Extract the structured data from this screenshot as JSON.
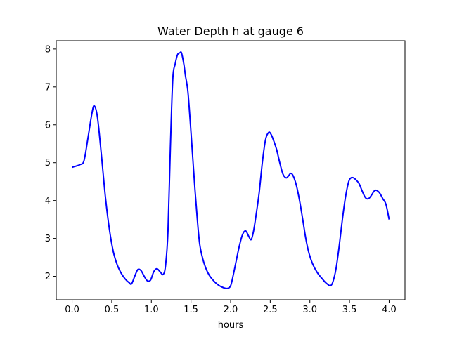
{
  "chart_data": {
    "type": "line",
    "title": "Water Depth h at gauge 6",
    "xlabel": "hours",
    "ylabel": "",
    "xlim": [
      -0.2,
      4.2
    ],
    "ylim": [
      1.38,
      8.22
    ],
    "xticks": [
      0.0,
      0.5,
      1.0,
      1.5,
      2.0,
      2.5,
      3.0,
      3.5,
      4.0
    ],
    "xtick_labels": [
      "0.0",
      "0.5",
      "1.0",
      "1.5",
      "2.0",
      "2.5",
      "3.0",
      "3.5",
      "4.0"
    ],
    "yticks": [
      2,
      3,
      4,
      5,
      6,
      7,
      8
    ],
    "ytick_labels": [
      "2",
      "3",
      "4",
      "5",
      "6",
      "7",
      "8"
    ],
    "grid": false,
    "series": [
      {
        "color": "#0000ff",
        "x": [
          0.0,
          0.05,
          0.1,
          0.15,
          0.2,
          0.25,
          0.28,
          0.32,
          0.37,
          0.42,
          0.47,
          0.52,
          0.57,
          0.62,
          0.67,
          0.72,
          0.75,
          0.79,
          0.83,
          0.87,
          0.91,
          0.95,
          0.99,
          1.03,
          1.07,
          1.11,
          1.15,
          1.18,
          1.21,
          1.24,
          1.27,
          1.3,
          1.33,
          1.36,
          1.38,
          1.41,
          1.43,
          1.46,
          1.49,
          1.52,
          1.55,
          1.58,
          1.61,
          1.65,
          1.69,
          1.73,
          1.77,
          1.81,
          1.86,
          1.91,
          1.96,
          2.0,
          2.03,
          2.07,
          2.11,
          2.15,
          2.19,
          2.23,
          2.26,
          2.29,
          2.32,
          2.36,
          2.4,
          2.44,
          2.48,
          2.51,
          2.54,
          2.58,
          2.62,
          2.66,
          2.7,
          2.73,
          2.76,
          2.79,
          2.83,
          2.87,
          2.91,
          2.95,
          2.99,
          3.03,
          3.07,
          3.11,
          3.15,
          3.19,
          3.23,
          3.26,
          3.29,
          3.33,
          3.37,
          3.41,
          3.45,
          3.49,
          3.52,
          3.55,
          3.58,
          3.62,
          3.66,
          3.7,
          3.74,
          3.78,
          3.81,
          3.84,
          3.88,
          3.92,
          3.96,
          4.0
        ],
        "y": [
          4.88,
          4.91,
          4.95,
          5.05,
          5.65,
          6.3,
          6.5,
          6.2,
          5.2,
          4.1,
          3.25,
          2.65,
          2.3,
          2.08,
          1.93,
          1.83,
          1.8,
          2.0,
          2.18,
          2.15,
          2.0,
          1.88,
          1.9,
          2.12,
          2.2,
          2.12,
          2.05,
          2.3,
          3.2,
          5.4,
          7.2,
          7.6,
          7.85,
          7.9,
          7.9,
          7.6,
          7.3,
          6.9,
          6.1,
          5.2,
          4.3,
          3.5,
          2.85,
          2.45,
          2.2,
          2.03,
          1.92,
          1.83,
          1.75,
          1.7,
          1.68,
          1.75,
          2.0,
          2.4,
          2.8,
          3.1,
          3.2,
          3.05,
          2.97,
          3.2,
          3.6,
          4.2,
          5.0,
          5.6,
          5.8,
          5.75,
          5.6,
          5.35,
          5.0,
          4.7,
          4.6,
          4.65,
          4.72,
          4.65,
          4.4,
          4.0,
          3.5,
          2.98,
          2.6,
          2.35,
          2.18,
          2.05,
          1.95,
          1.85,
          1.78,
          1.75,
          1.85,
          2.2,
          2.8,
          3.5,
          4.1,
          4.5,
          4.6,
          4.6,
          4.55,
          4.45,
          4.25,
          4.08,
          4.05,
          4.15,
          4.25,
          4.27,
          4.2,
          4.05,
          3.9,
          3.5
        ]
      }
    ]
  }
}
